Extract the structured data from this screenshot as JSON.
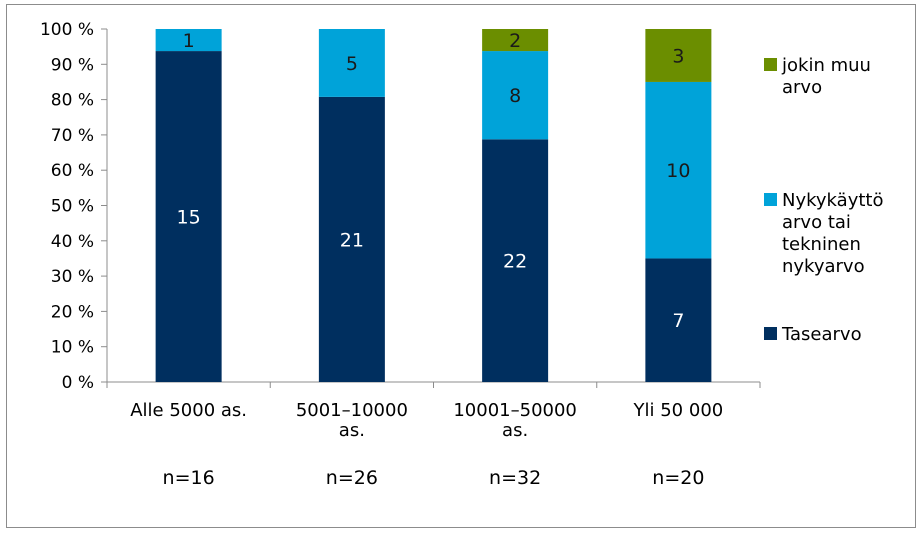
{
  "chart_data": {
    "type": "bar",
    "stacked": true,
    "percent_stacked": true,
    "categories": [
      [
        "Alle 5000 as."
      ],
      [
        "5001–10000",
        "as."
      ],
      [
        "10001–50000",
        "as."
      ],
      [
        "Yli 50 000"
      ]
    ],
    "n_labels": [
      "n=16",
      "n=26",
      "n=32",
      "n=20"
    ],
    "y_ticks": [
      "0 %",
      "10 %",
      "20 %",
      "30 %",
      "40 %",
      "50 %",
      "60 %",
      "70 %",
      "80 %",
      "90 %",
      "100 %"
    ],
    "ylim": [
      0,
      100
    ],
    "series": [
      {
        "name": [
          "Tasearvo"
        ],
        "color": "#002f5f",
        "label_color": "#ffffff",
        "values": [
          15,
          21,
          22,
          7
        ]
      },
      {
        "name": [
          "Nykykäyttö",
          "arvo tai",
          "tekninen",
          "nykyarvo"
        ],
        "color": "#00a3d9",
        "label_color": "#1a1a1a",
        "values": [
          1,
          5,
          8,
          10
        ]
      },
      {
        "name": [
          "jokin muu",
          "arvo"
        ],
        "color": "#6b8e00",
        "label_color": "#1a1a1a",
        "values": [
          0,
          0,
          2,
          3
        ]
      }
    ],
    "legend_position": "right",
    "grid": false
  }
}
